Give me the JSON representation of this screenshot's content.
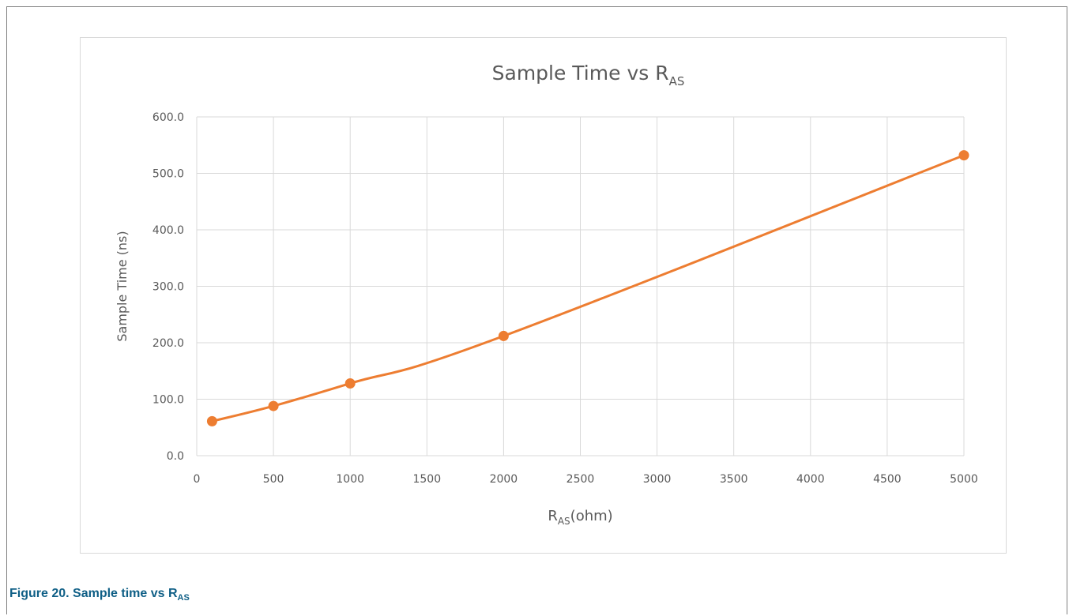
{
  "caption": {
    "prefix": "Figure 20.  Sample time vs R",
    "subscript": "AS"
  },
  "chart_data": {
    "type": "line",
    "title": "Sample Time vs R",
    "title_subscript": "AS",
    "xlabel": "R",
    "xlabel_subscript": "AS",
    "xlabel_suffix": "(ohm)",
    "ylabel": "Sample Time (ns)",
    "xlim": [
      0,
      5000
    ],
    "ylim": [
      0,
      600
    ],
    "x_ticks": [
      0,
      500,
      1000,
      1500,
      2000,
      2500,
      3000,
      3500,
      4000,
      4500,
      5000
    ],
    "y_ticks": [
      0,
      100,
      200,
      300,
      400,
      500,
      600
    ],
    "y_tick_labels": [
      "0.0",
      "100.0",
      "200.0",
      "300.0",
      "400.0",
      "500.0",
      "600.0"
    ],
    "grid": true,
    "series": [
      {
        "color": "#ed7d31",
        "smooth": true,
        "markers": true,
        "x": [
          100,
          500,
          1000,
          2000,
          5000
        ],
        "y": [
          61,
          88,
          128,
          212,
          532
        ]
      }
    ]
  }
}
